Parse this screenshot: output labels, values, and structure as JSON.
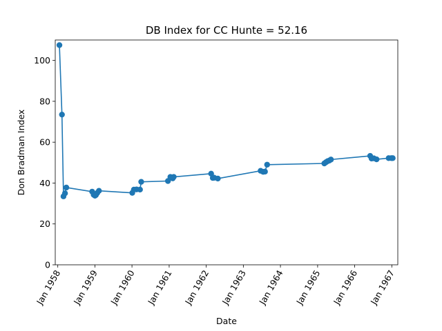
{
  "chart_data": {
    "type": "line",
    "title": "DB Index for CC Hunte = 52.16",
    "xlabel": "Date",
    "ylabel": "Don Bradman Index",
    "ylim": [
      0,
      110
    ],
    "yticks": [
      0,
      20,
      40,
      60,
      80,
      100
    ],
    "xlim": [
      "1957-12-07",
      "1967-03-01"
    ],
    "xticks": [
      {
        "date": "1958-01-01",
        "label": "Jan 1958"
      },
      {
        "date": "1959-01-01",
        "label": "Jan 1959"
      },
      {
        "date": "1960-01-01",
        "label": "Jan 1960"
      },
      {
        "date": "1961-01-01",
        "label": "Jan 1961"
      },
      {
        "date": "1962-01-01",
        "label": "Jan 1962"
      },
      {
        "date": "1963-01-01",
        "label": "Jan 1963"
      },
      {
        "date": "1964-01-01",
        "label": "Jan 1964"
      },
      {
        "date": "1965-01-01",
        "label": "Jan 1965"
      },
      {
        "date": "1966-01-01",
        "label": "Jan 1966"
      },
      {
        "date": "1967-01-01",
        "label": "Jan 1967"
      }
    ],
    "grid": false,
    "color": "#1f77b4",
    "series": [
      {
        "x": [
          "1958-01-17",
          "1958-02-11",
          "1958-02-26",
          "1958-03-13",
          "1958-03-26",
          "1958-12-05",
          "1958-12-20",
          "1959-01-02",
          "1959-01-12",
          "1959-01-25",
          "1959-02-10",
          "1960-01-04",
          "1960-01-20",
          "1960-02-15",
          "1960-03-20",
          "1960-04-01",
          "1960-12-20",
          "1961-01-13",
          "1961-02-05",
          "1961-02-15",
          "1962-02-18",
          "1962-03-06",
          "1962-03-20",
          "1962-04-25",
          "1963-06-20",
          "1963-07-15",
          "1963-08-02",
          "1963-08-23",
          "1965-03-08",
          "1965-03-24",
          "1965-04-09",
          "1965-04-25",
          "1965-05-12",
          "1966-06-02",
          "1966-06-16",
          "1966-07-08",
          "1966-08-04",
          "1966-12-01",
          "1966-12-28",
          "1967-01-10"
        ],
        "y": [
          107.5,
          73.5,
          33.5,
          35.0,
          37.8,
          35.8,
          34.3,
          33.8,
          34.2,
          35.2,
          36.2,
          35.2,
          36.8,
          36.9,
          36.8,
          40.6,
          41.0,
          43.0,
          42.3,
          43.0,
          44.6,
          42.5,
          42.6,
          42.2,
          46.0,
          45.5,
          45.6,
          49.0,
          49.6,
          50.2,
          50.7,
          51.0,
          51.5,
          53.3,
          52.0,
          52.1,
          51.6,
          52.2,
          52.2,
          52.2
        ]
      }
    ]
  }
}
